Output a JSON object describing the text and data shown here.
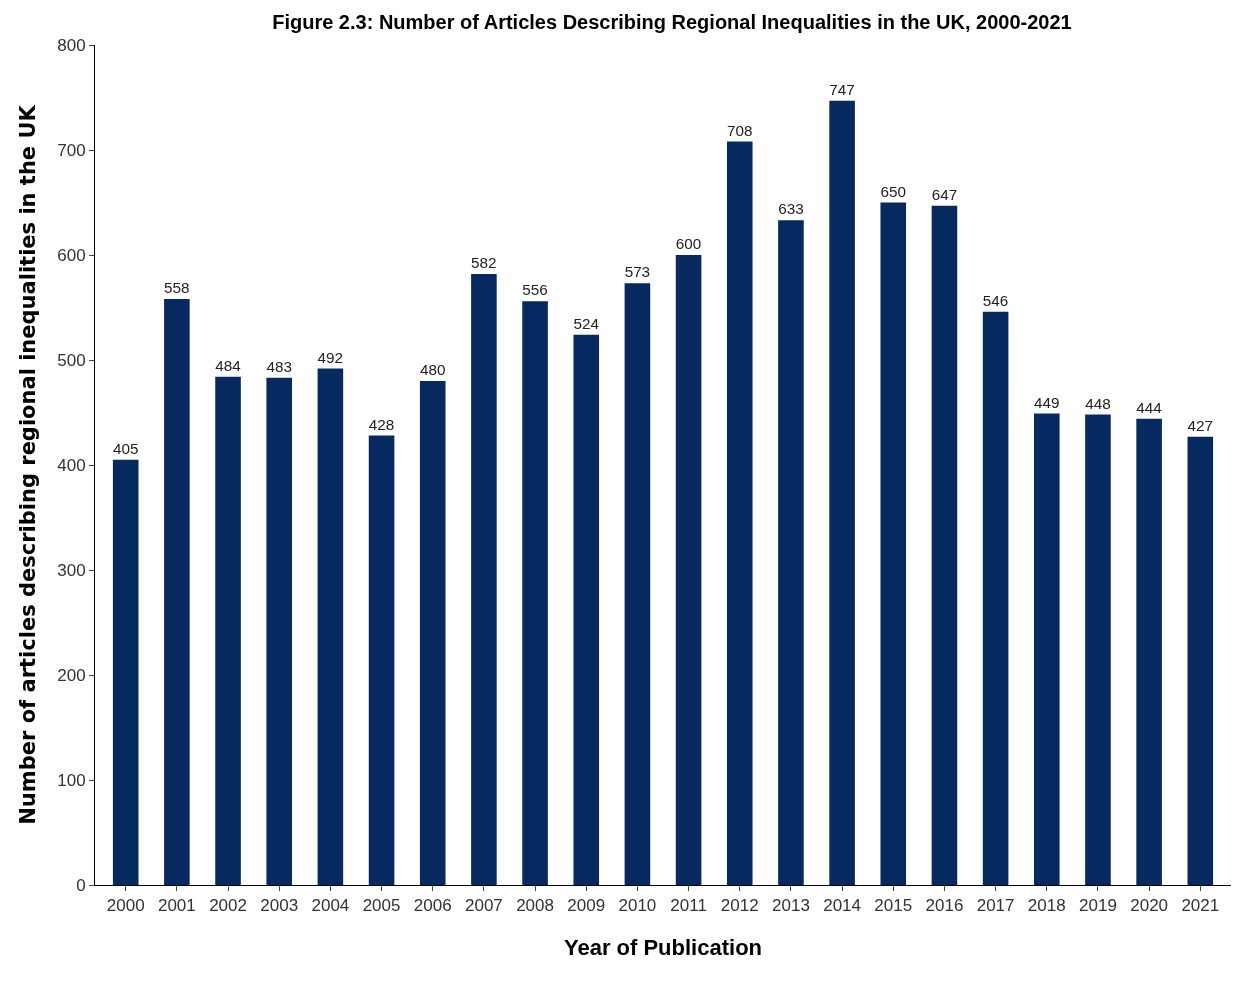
{
  "chart_data": {
    "type": "bar",
    "title": "Figure 2.3: Number of Articles Describing Regional Inequalities in the UK, 2000-2021",
    "xlabel": "Year of Publication",
    "ylabel": "Number of articles describing regional inequalities in the UK",
    "categories": [
      "2000",
      "2001",
      "2002",
      "2003",
      "2004",
      "2005",
      "2006",
      "2007",
      "2008",
      "2009",
      "2010",
      "2011",
      "2012",
      "2013",
      "2014",
      "2015",
      "2016",
      "2017",
      "2018",
      "2019",
      "2020",
      "2021"
    ],
    "values": [
      405,
      558,
      484,
      483,
      492,
      428,
      480,
      582,
      556,
      524,
      573,
      600,
      708,
      633,
      747,
      650,
      647,
      546,
      449,
      448,
      444,
      427
    ],
    "color": "#062a5f",
    "ylim": [
      0,
      800
    ],
    "yticks": [
      0,
      100,
      200,
      300,
      400,
      500,
      600,
      700,
      800
    ],
    "data_labels": true,
    "grid": false
  }
}
